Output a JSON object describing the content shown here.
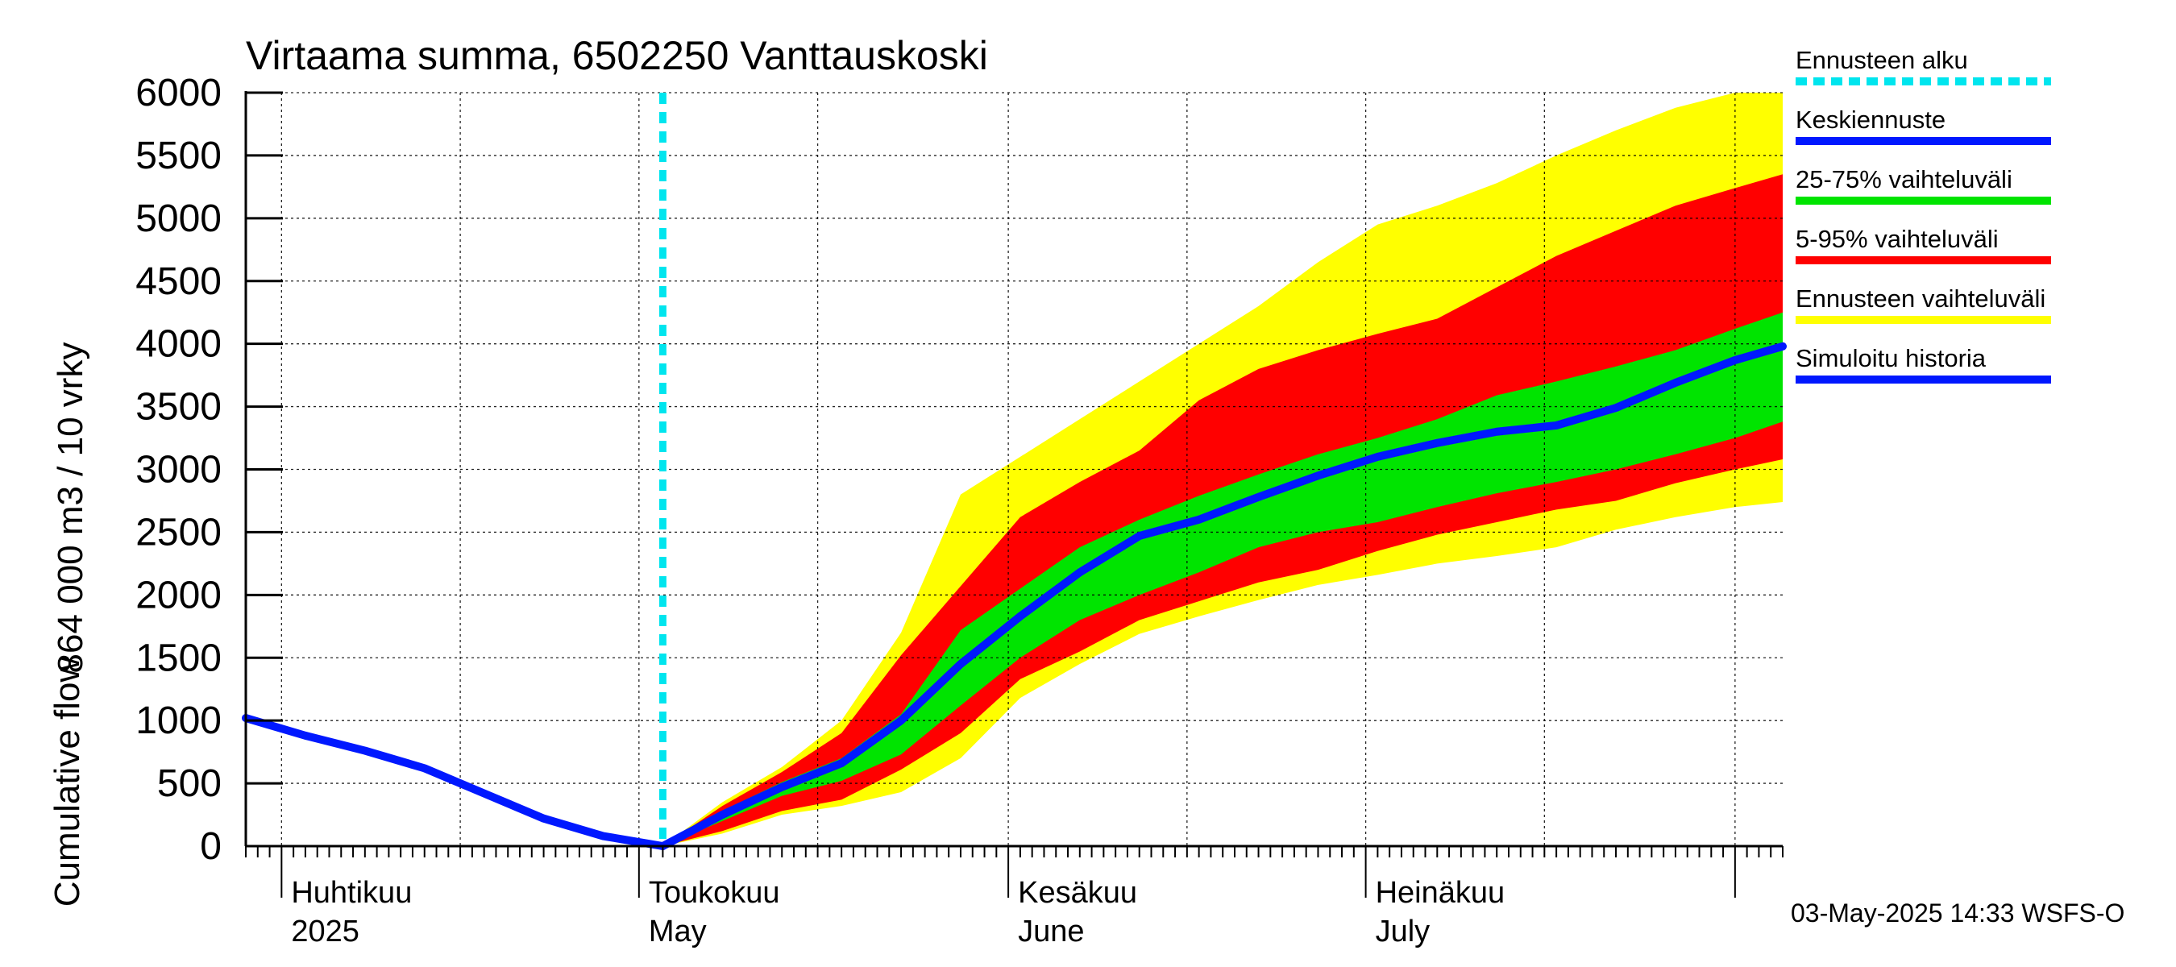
{
  "chart_data": {
    "type": "area",
    "title": "Virtaama summa, 6502250 Vanttauskoski",
    "ylabel_fi": "864 000 m3 / 10 vrky",
    "ylabel_en": "Cumulative flow",
    "ylim": [
      0,
      6000
    ],
    "yticks": [
      0,
      500,
      1000,
      1500,
      2000,
      2500,
      3000,
      3500,
      4000,
      4500,
      5000,
      5500,
      6000
    ],
    "xlim": [
      "2025-03-29",
      "2025-08-05"
    ],
    "grid": true,
    "months": [
      {
        "fi": "Huhtikuu",
        "en": "2025",
        "date": "2025-04-01"
      },
      {
        "fi": "Toukokuu",
        "en": "May",
        "date": "2025-05-01"
      },
      {
        "fi": "Kesäkuu",
        "en": "June",
        "date": "2025-06-01"
      },
      {
        "fi": "Heinäkuu",
        "en": "July",
        "date": "2025-07-01"
      },
      {
        "fi": "",
        "en": "",
        "date": "2025-08-01"
      }
    ],
    "forecast_start": "2025-05-03",
    "legend": [
      {
        "label": "Ennusteen alku",
        "color": "#00e5ee",
        "style": "dotted"
      },
      {
        "label": "Keskiennuste",
        "color": "#0018ff",
        "style": "solid"
      },
      {
        "label": "25-75% vaihteluväli",
        "color": "#00e400",
        "style": "solid"
      },
      {
        "label": "5-95% vaihteluväli",
        "color": "#ff0000",
        "style": "solid"
      },
      {
        "label": "Ennusteen vaihteluväli",
        "color": "#ffff00",
        "style": "solid"
      },
      {
        "label": "Simuloitu historia",
        "color": "#0018ff",
        "style": "solid"
      }
    ],
    "history": {
      "x": [
        "2025-03-29",
        "2025-04-03",
        "2025-04-08",
        "2025-04-13",
        "2025-04-18",
        "2025-04-23",
        "2025-04-28",
        "2025-05-03"
      ],
      "values": [
        1020,
        880,
        760,
        620,
        420,
        220,
        80,
        0
      ]
    },
    "forecast": {
      "x": [
        "2025-05-03",
        "2025-05-08",
        "2025-05-13",
        "2025-05-18",
        "2025-05-23",
        "2025-05-28",
        "2025-06-02",
        "2025-06-07",
        "2025-06-12",
        "2025-06-17",
        "2025-06-22",
        "2025-06-27",
        "2025-07-02",
        "2025-07-07",
        "2025-07-12",
        "2025-07-17",
        "2025-07-22",
        "2025-07-27",
        "2025-08-01",
        "2025-08-05"
      ],
      "mean": [
        0,
        250,
        470,
        660,
        1000,
        1450,
        1830,
        2180,
        2470,
        2600,
        2780,
        2950,
        3100,
        3210,
        3300,
        3350,
        3490,
        3690,
        3870,
        3980
      ],
      "p25": [
        0,
        200,
        400,
        520,
        730,
        1120,
        1500,
        1800,
        2000,
        2180,
        2380,
        2500,
        2580,
        2700,
        2810,
        2900,
        3000,
        3120,
        3250,
        3380
      ],
      "p75": [
        0,
        280,
        510,
        700,
        1050,
        1720,
        2050,
        2380,
        2600,
        2790,
        2960,
        3120,
        3250,
        3400,
        3590,
        3700,
        3820,
        3950,
        4120,
        4250
      ],
      "p5": [
        0,
        120,
        280,
        370,
        610,
        900,
        1330,
        1550,
        1800,
        1950,
        2100,
        2200,
        2350,
        2480,
        2580,
        2680,
        2750,
        2890,
        3000,
        3080
      ],
      "p95": [
        0,
        320,
        590,
        900,
        1520,
        2070,
        2620,
        2900,
        3150,
        3550,
        3800,
        3950,
        4080,
        4200,
        4450,
        4700,
        4900,
        5100,
        5240,
        5350
      ],
      "min": [
        0,
        100,
        250,
        320,
        430,
        700,
        1180,
        1450,
        1690,
        1830,
        1960,
        2080,
        2160,
        2250,
        2310,
        2380,
        2520,
        2620,
        2700,
        2740
      ],
      "max": [
        0,
        350,
        630,
        1000,
        1700,
        2800,
        3100,
        3400,
        3700,
        4000,
        4300,
        4650,
        4950,
        5100,
        5280,
        5500,
        5700,
        5880,
        6000,
        6000
      ]
    }
  },
  "footer": "03-May-2025 14:33 WSFS-O"
}
